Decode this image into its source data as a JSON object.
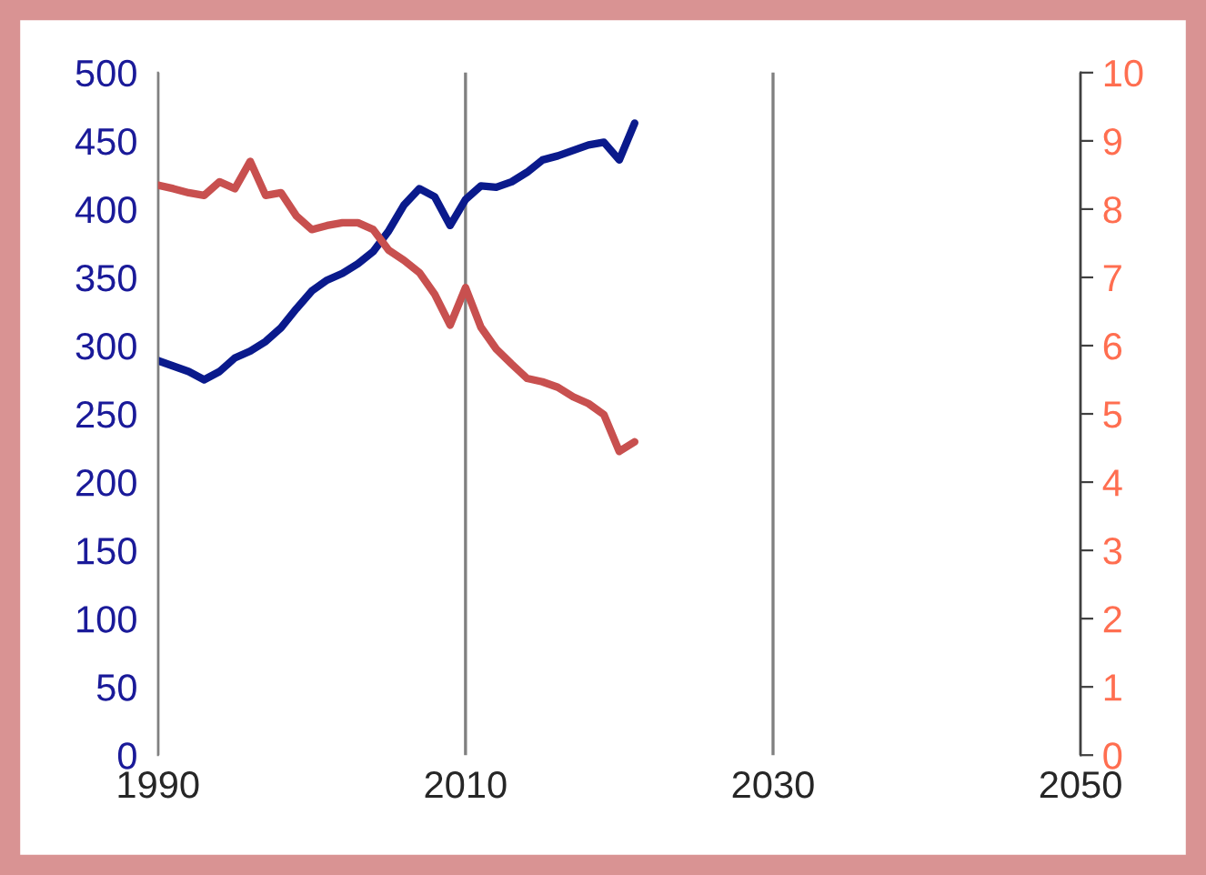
{
  "chart_data": {
    "type": "line",
    "x": [
      1990,
      1991,
      1992,
      1993,
      1994,
      1995,
      1996,
      1997,
      1998,
      1999,
      2000,
      2001,
      2002,
      2003,
      2004,
      2005,
      2006,
      2007,
      2008,
      2009,
      2010,
      2011,
      2012,
      2013,
      2014,
      2015,
      2016,
      2017,
      2018,
      2019,
      2020,
      2021
    ],
    "series": [
      {
        "color": "#0a1a8c",
        "values": [
          289,
          285,
          281,
          275,
          281,
          291,
          296,
          303,
          313,
          327,
          340,
          348,
          353,
          360,
          369,
          384,
          403,
          415,
          409,
          388,
          407,
          417,
          416,
          420,
          427,
          436,
          439,
          443,
          447,
          449,
          436,
          463
        ]
      },
      {
        "color": "#c8504f",
        "axis": "y2",
        "values": [
          8.35,
          8.3,
          8.24,
          8.2,
          8.4,
          8.3,
          8.7,
          8.2,
          8.24,
          7.9,
          7.7,
          7.76,
          7.8,
          7.8,
          7.7,
          7.4,
          7.25,
          7.07,
          6.75,
          6.3,
          6.85,
          6.27,
          5.95,
          5.73,
          5.52,
          5.47,
          5.39,
          5.25,
          5.15,
          4.99,
          4.45,
          4.59
        ]
      }
    ],
    "xlim": [
      1990,
      2050
    ],
    "xticks": [
      1990,
      2010,
      2030,
      2050
    ],
    "ylim": [
      0,
      500
    ],
    "yticks": [
      0,
      50,
      100,
      150,
      200,
      250,
      300,
      350,
      400,
      450,
      500
    ],
    "y2lim": [
      0,
      10
    ],
    "y2ticks": [
      0,
      1,
      2,
      3,
      4,
      5,
      6,
      7,
      8,
      9,
      10
    ],
    "grid": "x",
    "marker": "none",
    "line_style": "solid",
    "legend": false
  }
}
